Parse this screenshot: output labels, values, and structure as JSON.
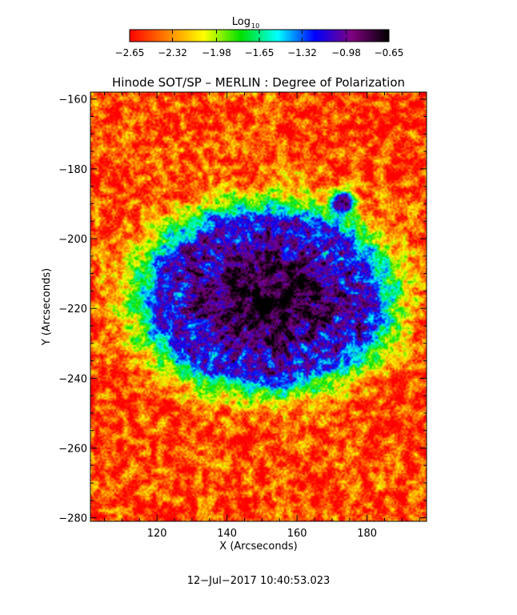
{
  "chart_data": {
    "type": "heatmap",
    "title": "Hinode SOT/SP – MERLIN : Degree of Polarization",
    "xlabel": "X (Arcseconds)",
    "ylabel": "Y (Arcseconds)",
    "xlim": [
      101,
      197
    ],
    "ylim": [
      -281,
      -158
    ],
    "x_ticks": [
      {
        "value": 120,
        "label": "120"
      },
      {
        "value": 140,
        "label": "140"
      },
      {
        "value": 160,
        "label": "160"
      },
      {
        "value": 180,
        "label": "180"
      }
    ],
    "y_ticks": [
      {
        "value": -160,
        "label": "−160"
      },
      {
        "value": -180,
        "label": "−180"
      },
      {
        "value": -200,
        "label": "−200"
      },
      {
        "value": -220,
        "label": "−220"
      },
      {
        "value": -240,
        "label": "−240"
      },
      {
        "value": -260,
        "label": "−260"
      },
      {
        "value": -280,
        "label": "−280"
      }
    ],
    "colorbar": {
      "title": "Log",
      "title_subscript": "10",
      "range": [
        -2.65,
        -0.65
      ],
      "ticks": [
        {
          "value": -2.65,
          "label": "−2.65"
        },
        {
          "value": -2.32,
          "label": "−2.32"
        },
        {
          "value": -1.98,
          "label": "−1.98"
        },
        {
          "value": -1.65,
          "label": "−1.65"
        },
        {
          "value": -1.32,
          "label": "−1.32"
        },
        {
          "value": -0.98,
          "label": "−0.98"
        },
        {
          "value": -0.65,
          "label": "−0.65"
        }
      ],
      "colors": [
        "#ff0000",
        "#ff8000",
        "#ffff00",
        "#00e000",
        "#00ffff",
        "#0000ff",
        "#800080",
        "#000000"
      ]
    },
    "features": {
      "umbra_center": [
        151,
        -217
      ],
      "penumbra_radius_x": 27,
      "penumbra_radius_y": 20,
      "pore_center": [
        173,
        -190
      ]
    }
  },
  "footer": {
    "timestamp": "12−Jul−2017 10:40:53.023"
  }
}
